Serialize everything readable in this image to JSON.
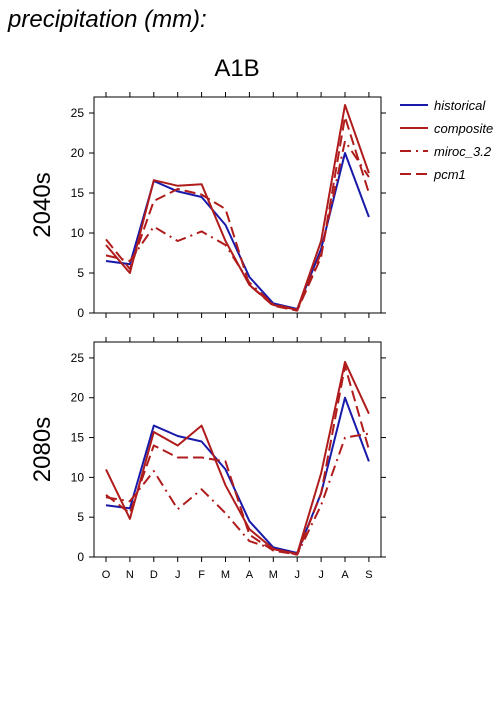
{
  "page": {
    "title": "precipitation (mm):",
    "scenario": "A1B"
  },
  "colors": {
    "historical": "#1a1aaa",
    "composite": "#b01c1c",
    "miroc_3.2": "#b01c1c",
    "pcm1": "#b01c1c"
  },
  "legend": [
    {
      "label": "historical",
      "color": "#1a1aaa",
      "dash": "solid"
    },
    {
      "label": "composite",
      "color": "#b01c1c",
      "dash": "solid"
    },
    {
      "label": "miroc_3.2",
      "color": "#b01c1c",
      "dash": "dash-dot"
    },
    {
      "label": "pcm1",
      "color": "#b01c1c",
      "dash": "dashed"
    }
  ],
  "chart_data": [
    {
      "type": "line",
      "ylabel": "2040s",
      "categories": [
        "O",
        "N",
        "D",
        "J",
        "F",
        "M",
        "A",
        "M",
        "J",
        "J",
        "A",
        "S"
      ],
      "ylim": [
        0,
        27
      ],
      "yticks": [
        0,
        5,
        10,
        15,
        20,
        25
      ],
      "series": [
        {
          "name": "historical",
          "values": [
            6.5,
            6.1,
            16.5,
            15.2,
            14.5,
            11.0,
            4.5,
            1.2,
            0.5,
            8.0,
            20.0,
            12.0
          ]
        },
        {
          "name": "composite",
          "values": [
            8.5,
            5.0,
            16.6,
            15.9,
            16.1,
            9.0,
            3.5,
            1.0,
            0.4,
            9.0,
            26.0,
            17.5
          ]
        },
        {
          "name": "miroc_3.2",
          "values": [
            7.2,
            6.5,
            10.8,
            9.0,
            10.2,
            8.5,
            3.8,
            1.1,
            0.4,
            7.5,
            21.5,
            17.0
          ]
        },
        {
          "name": "pcm1",
          "values": [
            9.2,
            5.5,
            14.0,
            15.5,
            14.8,
            13.0,
            3.5,
            0.9,
            0.3,
            7.0,
            24.5,
            15.0
          ]
        }
      ]
    },
    {
      "type": "line",
      "ylabel": "2080s",
      "categories": [
        "O",
        "N",
        "D",
        "J",
        "F",
        "M",
        "A",
        "M",
        "J",
        "J",
        "A",
        "S"
      ],
      "ylim": [
        0,
        27
      ],
      "yticks": [
        0,
        5,
        10,
        15,
        20,
        25
      ],
      "series": [
        {
          "name": "historical",
          "values": [
            6.5,
            6.1,
            16.5,
            15.2,
            14.5,
            11.0,
            4.5,
            1.2,
            0.5,
            8.0,
            20.0,
            12.0
          ]
        },
        {
          "name": "composite",
          "values": [
            11.0,
            4.8,
            15.7,
            14.0,
            16.5,
            9.0,
            3.5,
            1.0,
            0.4,
            10.5,
            24.5,
            18.0
          ]
        },
        {
          "name": "miroc_3.2",
          "values": [
            7.5,
            7.0,
            10.8,
            6.0,
            8.5,
            5.5,
            2.0,
            1.0,
            0.3,
            6.5,
            15.0,
            15.5
          ]
        },
        {
          "name": "pcm1",
          "values": [
            7.8,
            5.5,
            14.0,
            12.5,
            12.5,
            12.0,
            2.8,
            0.8,
            0.3,
            8.0,
            24.0,
            13.5
          ]
        }
      ]
    }
  ]
}
